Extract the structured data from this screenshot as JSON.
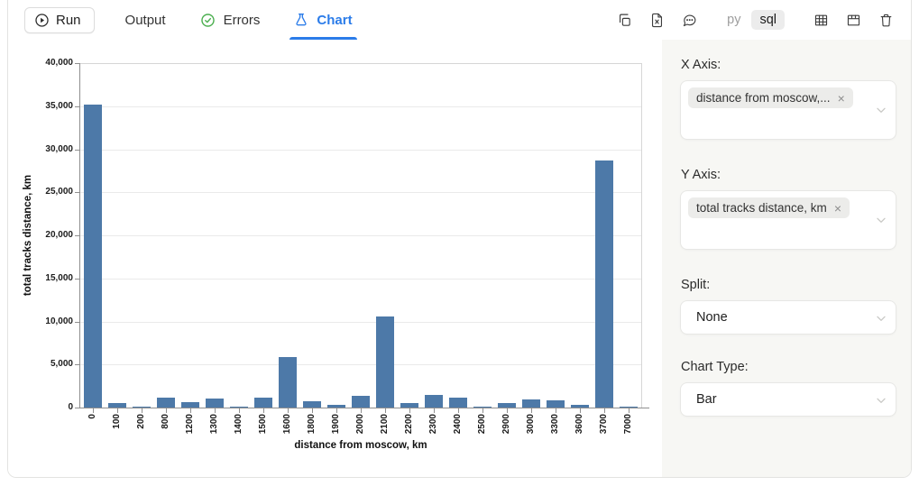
{
  "colors": {
    "accent-blue": "#2b7ce9",
    "success-green": "#4caf50",
    "bar-color": "#4d79a8",
    "panel-bg": "#f7f7f4"
  },
  "toolbar": {
    "run_label": "Run",
    "tabs": [
      {
        "label": "Output"
      },
      {
        "label": "Errors"
      },
      {
        "label": "Chart"
      }
    ],
    "lang": {
      "py": "py",
      "sql": "sql"
    }
  },
  "chart_data": {
    "type": "bar",
    "title": "",
    "xlabel": "distance from moscow, km",
    "ylabel": "total tracks distance, km",
    "categories": [
      "0",
      "100",
      "200",
      "800",
      "1200",
      "1300",
      "1400",
      "1500",
      "1600",
      "1800",
      "1900",
      "2000",
      "2100",
      "2200",
      "2300",
      "2400",
      "2500",
      "2900",
      "3000",
      "3300",
      "3600",
      "3700",
      "7000"
    ],
    "values": [
      35200,
      500,
      50,
      1200,
      650,
      1050,
      100,
      1200,
      5850,
      700,
      280,
      1350,
      10600,
      500,
      1500,
      1150,
      100,
      550,
      950,
      800,
      350,
      28700,
      80
    ],
    "ylim": [
      0,
      40000
    ],
    "ytick_step": 5000,
    "grid": true,
    "legend": "none"
  },
  "side_panel": {
    "x_axis": {
      "label": "X Axis:",
      "selected": "distance from moscow,...",
      "remove_label": "×"
    },
    "y_axis": {
      "label": "Y Axis:",
      "selected": "total tracks distance, km",
      "remove_label": "×"
    },
    "split": {
      "label": "Split:",
      "value": "None"
    },
    "chart_type": {
      "label": "Chart Type:",
      "value": "Bar"
    }
  }
}
